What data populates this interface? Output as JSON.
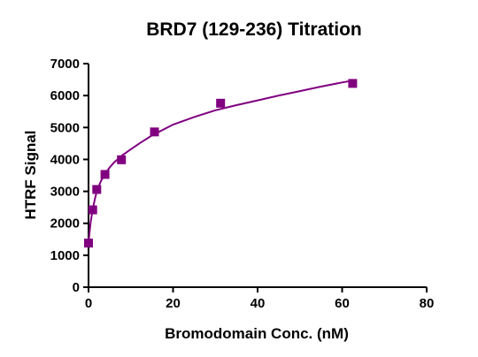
{
  "chart_data": {
    "type": "scatter",
    "title": "BRD7 (129-236) Titration",
    "xlabel": "Bromodomain Conc. (nM)",
    "ylabel": "HTRF Signal",
    "xlim": [
      0,
      80
    ],
    "ylim": [
      0,
      7000
    ],
    "xticks": [
      0,
      20,
      40,
      60,
      80
    ],
    "yticks": [
      0,
      1000,
      2000,
      3000,
      4000,
      5000,
      6000,
      7000
    ],
    "grid": false,
    "legend": "none",
    "marker": "square",
    "color": "#800080",
    "series": [
      {
        "x": [
          0,
          0.98,
          1.95,
          3.9,
          7.8,
          15.6,
          31.25,
          62.5
        ],
        "y": [
          1380,
          2420,
          3060,
          3530,
          3990,
          4860,
          5760,
          6380
        ]
      }
    ],
    "fit_curve": {
      "x": [
        0,
        0.25,
        0.5,
        1,
        1.5,
        2,
        3,
        4,
        5,
        6,
        8,
        10,
        12,
        15,
        20,
        25,
        30,
        35,
        40,
        45,
        50,
        55,
        60,
        62.5
      ],
      "y": [
        1380,
        1730,
        2030,
        2450,
        2760,
        3020,
        3340,
        3560,
        3750,
        3900,
        4130,
        4320,
        4500,
        4750,
        5090,
        5330,
        5540,
        5700,
        5850,
        6000,
        6140,
        6280,
        6410,
        6470
      ]
    }
  }
}
